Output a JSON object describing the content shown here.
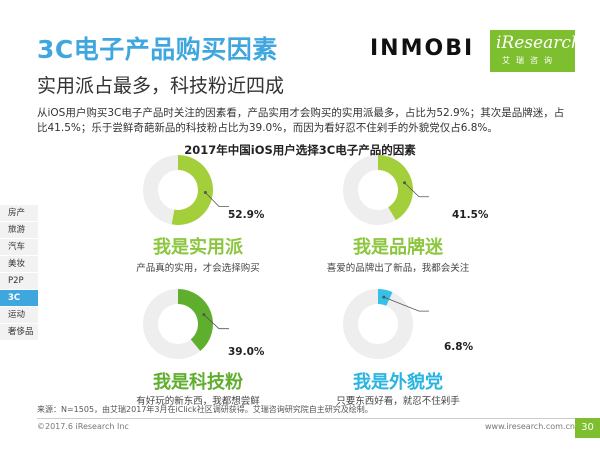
{
  "header": {
    "title": "3C电子产品购买因素",
    "subtitle": "实用派占最多，科技粉近四成",
    "logo_inmobi": "INMOBI",
    "logo_iresearch": "iResearch",
    "logo_iresearch_cn": "艾瑞咨询"
  },
  "description": "从iOS用户购买3C电子产品时关注的因素看，产品实用才会购买的实用派最多，占比为52.9%；其次是品牌迷，占比41.5%；乐于尝鲜奇葩新品的科技粉占比为39.0%，而因为看好忍不住剁手的外貌党仅占6.8%。",
  "sidebar": {
    "items": [
      {
        "label": "房产",
        "active": false
      },
      {
        "label": "旅游",
        "active": false
      },
      {
        "label": "汽车",
        "active": false
      },
      {
        "label": "美妆",
        "active": false
      },
      {
        "label": "P2P",
        "active": false
      },
      {
        "label": "3C",
        "active": true
      },
      {
        "label": "运动",
        "active": false
      },
      {
        "label": "奢侈品",
        "active": false
      }
    ]
  },
  "chart_data": {
    "type": "pie",
    "title": "2017年中国iOS用户选择3C电子产品的因素",
    "series": [
      {
        "name": "我是实用派",
        "value": 52.9,
        "label": "52.9%",
        "note": "产品真的实用，才会选择购买",
        "color": "#a3cf3b",
        "label_color": "#8cc63f"
      },
      {
        "name": "我是品牌迷",
        "value": 41.5,
        "label": "41.5%",
        "note": "喜爱的品牌出了新品，我都会关注",
        "color": "#a3cf3b",
        "label_color": "#8cc63f"
      },
      {
        "name": "我是科技粉",
        "value": 39.0,
        "label": "39.0%",
        "note": "有好玩的新东西，我都想尝鲜",
        "color": "#5fae2e",
        "label_color": "#5fae2e"
      },
      {
        "name": "我是外貌党",
        "value": 6.8,
        "label": "6.8%",
        "note": "只要东西好看，就忍不住剁手",
        "color": "#35c0e8",
        "label_color": "#2ab4e0"
      }
    ],
    "remainder_color": "#eeeeee"
  },
  "footer": {
    "source": "来源：N=1505，由艾瑞2017年3月在iClick社区调研获得。艾瑞咨询研究院自主研究及绘制。",
    "copyright": "©2017.6 iResearch Inc",
    "site": "www.iresearch.com.cn",
    "page": "30"
  }
}
